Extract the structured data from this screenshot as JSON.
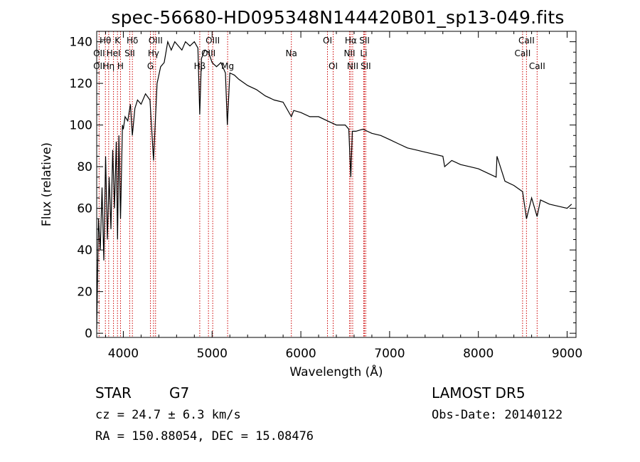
{
  "title": "spec-56680-HD095348N144420B01_sp13-049.fits",
  "info": {
    "object_class": "STAR",
    "subclass": "G7",
    "survey": "LAMOST  DR5",
    "cz": "cz = 24.7 ± 6.3 km/s",
    "obs_date": "Obs-Date: 20140122",
    "radec": "RA = 150.88054, DEC =  15.08476"
  },
  "chart_data": {
    "type": "line",
    "title": "spec-56680-HD095348N144420B01_sp13-049.fits",
    "xlabel": "Wavelength (Å)",
    "ylabel": "Flux (relative)",
    "xlim": [
      3700,
      9100
    ],
    "ylim": [
      -2,
      145
    ],
    "xticks": [
      4000,
      5000,
      6000,
      7000,
      8000,
      9000
    ],
    "yticks": [
      0,
      20,
      40,
      60,
      80,
      100,
      120,
      140
    ],
    "grid": false,
    "line_color": "#000000",
    "marker_color": "#cc0000",
    "series": [
      {
        "x": [
          3700,
          3720,
          3740,
          3760,
          3780,
          3800,
          3820,
          3840,
          3860,
          3880,
          3900,
          3920,
          3935,
          3950,
          3968,
          3990,
          4000,
          4020,
          4050,
          4080,
          4101,
          4130,
          4160,
          4200,
          4250,
          4300,
          4340,
          4380,
          4420,
          4460,
          4500,
          4540,
          4580,
          4620,
          4660,
          4700,
          4750,
          4800,
          4840,
          4861,
          4880,
          4920,
          4960,
          5000,
          5050,
          5100,
          5150,
          5172,
          5200,
          5250,
          5300,
          5400,
          5500,
          5600,
          5700,
          5800,
          5893,
          5920,
          6000,
          6100,
          6200,
          6300,
          6400,
          6500,
          6540,
          6563,
          6580,
          6620,
          6700,
          6800,
          6900,
          7000,
          7100,
          7200,
          7300,
          7400,
          7500,
          7600,
          7620,
          7700,
          7800,
          7900,
          8000,
          8100,
          8200,
          8210,
          8300,
          8400,
          8498,
          8542,
          8600,
          8662,
          8700,
          8800,
          8900,
          9000,
          9050
        ],
        "y": [
          2,
          55,
          40,
          70,
          35,
          85,
          45,
          75,
          50,
          88,
          60,
          92,
          45,
          95,
          55,
          100,
          98,
          104,
          102,
          110,
          95,
          108,
          112,
          110,
          115,
          112,
          83,
          120,
          128,
          130,
          140,
          136,
          140,
          138,
          136,
          140,
          138,
          140,
          137,
          105,
          132,
          136,
          135,
          130,
          128,
          130,
          125,
          100,
          125,
          124,
          122,
          119,
          117,
          114,
          112,
          111,
          104,
          107,
          106,
          104,
          104,
          102,
          100,
          100,
          98,
          75,
          97,
          97,
          98,
          96,
          95,
          93,
          91,
          89,
          88,
          87,
          86,
          85,
          80,
          83,
          81,
          80,
          79,
          77,
          75,
          85,
          73,
          71,
          68,
          55,
          65,
          56,
          64,
          62,
          61,
          60,
          62
        ]
      }
    ],
    "line_ids": [
      {
        "name": "Hθ",
        "wave": 3798,
        "row": 0
      },
      {
        "name": "OII",
        "wave": 3727,
        "row": 1
      },
      {
        "name": "OII",
        "wave": 3727,
        "row": 2
      },
      {
        "name": "K",
        "wave": 3934,
        "row": 0
      },
      {
        "name": "HeI",
        "wave": 3889,
        "row": 1
      },
      {
        "name": "Hη",
        "wave": 3835,
        "row": 2
      },
      {
        "name": "Hδ",
        "wave": 4102,
        "row": 0
      },
      {
        "name": "SII",
        "wave": 4072,
        "row": 1
      },
      {
        "name": "H",
        "wave": 3968,
        "row": 2
      },
      {
        "name": "OIII",
        "wave": 4363,
        "row": 0
      },
      {
        "name": "Hγ",
        "wave": 4340,
        "row": 1
      },
      {
        "name": "G",
        "wave": 4305,
        "row": 2
      },
      {
        "name": "OIII",
        "wave": 5007,
        "row": 0
      },
      {
        "name": "OIII",
        "wave": 4959,
        "row": 1
      },
      {
        "name": "Hβ",
        "wave": 4861,
        "row": 2
      },
      {
        "name": "Mg",
        "wave": 5175,
        "row": 2
      },
      {
        "name": "Na",
        "wave": 5893,
        "row": 1
      },
      {
        "name": "OI",
        "wave": 6300,
        "row": 0
      },
      {
        "name": "OI",
        "wave": 6364,
        "row": 2
      },
      {
        "name": "Hα",
        "wave": 6563,
        "row": 0
      },
      {
        "name": "NII",
        "wave": 6548,
        "row": 1
      },
      {
        "name": "NII",
        "wave": 6584,
        "row": 2
      },
      {
        "name": "SII",
        "wave": 6717,
        "row": 0
      },
      {
        "name": "Li",
        "wave": 6708,
        "row": 1
      },
      {
        "name": "SII",
        "wave": 6731,
        "row": 2
      },
      {
        "name": "CaII",
        "wave": 8542,
        "row": 0
      },
      {
        "name": "CaII",
        "wave": 8498,
        "row": 1
      },
      {
        "name": "CaII",
        "wave": 8662,
        "row": 2
      }
    ]
  }
}
